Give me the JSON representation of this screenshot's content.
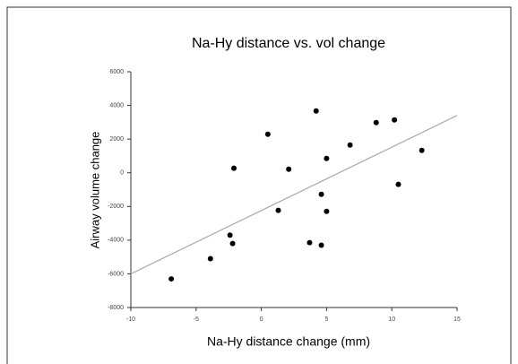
{
  "chart_data": {
    "type": "scatter",
    "title": "Na-Hy distance vs. vol change",
    "xlabel": "Na-Hy distance change (mm)",
    "ylabel": "Airway volume change",
    "x": [
      -6.9,
      -3.9,
      -2.4,
      -2.2,
      -2.1,
      0.5,
      1.3,
      2.1,
      3.7,
      4.2,
      4.6,
      4.6,
      5.0,
      5.0,
      6.8,
      8.8,
      10.2,
      10.5,
      12.3
    ],
    "values": [
      -6300,
      -5100,
      -3700,
      -4200,
      270,
      2290,
      -2230,
      210,
      -4150,
      3670,
      -4300,
      -1280,
      -2290,
      850,
      1650,
      2980,
      3140,
      -690,
      1330
    ],
    "color": "#000000",
    "trendline": {
      "x": [
        -10,
        15
      ],
      "y": [
        -6000,
        3400
      ],
      "color": "#aaaaaa"
    },
    "xlim": [
      -10,
      15
    ],
    "xticks": [
      -10,
      -5,
      0,
      5,
      10,
      15
    ],
    "ylim": [
      -8000,
      6000
    ],
    "yticks": [
      -8000,
      -6000,
      -4000,
      -2000,
      0,
      2000,
      4000,
      6000
    ]
  }
}
